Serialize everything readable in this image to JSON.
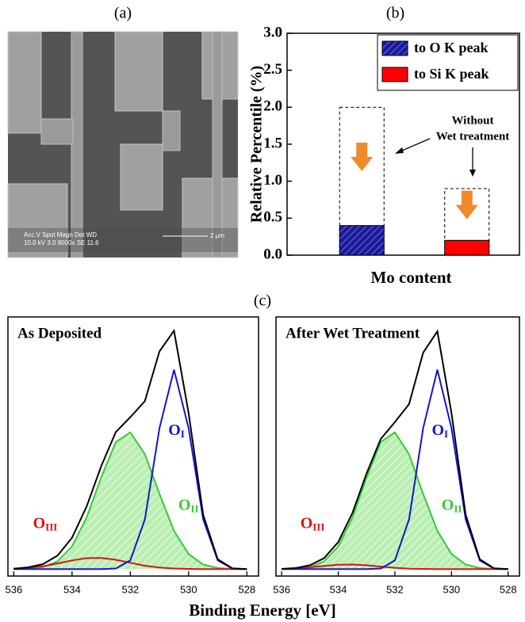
{
  "figure": {
    "labels": {
      "a": "(a)",
      "c": "(c)"
    },
    "sem_text": [
      "Acc.V  Spot Magn     Det  WD",
      "10.0 kV 3.0   8000x    SE   11.6",
      "2 μm"
    ]
  },
  "chart_data": [
    {
      "type": "bar",
      "title": "(b)",
      "y_label": "Relative Percentile (%)",
      "x_label": "Mo content",
      "categories": [
        null,
        null
      ],
      "series": [
        {
          "name": "to O K peak",
          "color": "#1a1a9c",
          "hatch": true,
          "values": [
            0.4,
            null
          ]
        },
        {
          "name": "to Si K peak",
          "color": "#ff0000",
          "hatch": false,
          "values": [
            null,
            0.2
          ]
        }
      ],
      "dashed_values": [
        2.0,
        0.9
      ],
      "annotation": [
        "Without",
        "Wet treatment"
      ],
      "ylim": [
        0,
        3
      ],
      "yticks": [
        {
          "value": 0,
          "label": "0.0"
        },
        0.5,
        {
          "value": 1,
          "label": "1.0"
        },
        1.5,
        {
          "value": 2,
          "label": "2.0"
        },
        2.5,
        {
          "value": 3,
          "label": "3.0"
        }
      ],
      "legend": "upper-right"
    },
    {
      "type": "line",
      "title": "As Deposited",
      "x_label": "Binding Energy [eV]",
      "x": [
        536,
        535.5,
        535,
        534.5,
        534,
        533.5,
        533,
        532.5,
        532,
        531.5,
        531,
        530.5,
        530,
        529.5,
        529,
        528.5,
        528
      ],
      "series": [
        {
          "color": "#000000",
          "values": [
            0.002,
            0.008,
            0.022,
            0.059,
            0.137,
            0.273,
            0.449,
            0.598,
            0.663,
            0.733,
            0.95,
            1.04,
            0.682,
            0.237,
            0.043,
            0.004,
            0
          ]
        },
        {
          "name": "O",
          "name_sub": "I",
          "color": "#1515d0",
          "values": [
            0,
            0,
            0,
            0,
            0,
            0,
            0,
            0.003,
            0.038,
            0.217,
            0.615,
            0.87,
            0.615,
            0.217,
            0.038,
            0.003,
            0
          ]
        },
        {
          "name": "O",
          "name_sub": "II",
          "color": "#33cc33",
          "fill": true,
          "values": [
            0,
            0.002,
            0.009,
            0.034,
            0.099,
            0.225,
            0.4,
            0.554,
            0.597,
            0.501,
            0.328,
            0.167,
            0.066,
            0.02,
            0.005,
            0.001,
            0
          ]
        },
        {
          "name": "O",
          "name_sub": "III",
          "color": "#e01010",
          "values": [
            0.002,
            0.006,
            0.013,
            0.025,
            0.038,
            0.048,
            0.049,
            0.041,
            0.028,
            0.015,
            0.007,
            0.003,
            0.001,
            0,
            0,
            0,
            0
          ]
        }
      ],
      "xlim": [
        536.2,
        527.6
      ],
      "xticks": [
        536,
        534,
        532,
        530,
        528
      ],
      "ylim": [
        -0.03,
        1.1
      ]
    },
    {
      "type": "line",
      "title": "After Wet Treatment",
      "x": [
        536,
        535.5,
        535,
        534.5,
        534,
        533.5,
        533,
        532.5,
        532,
        531.5,
        531,
        530.5,
        530,
        529.5,
        529,
        528.5,
        528
      ],
      "series": [
        {
          "color": "#000000",
          "values": [
            0.001,
            0.005,
            0.017,
            0.048,
            0.118,
            0.245,
            0.417,
            0.568,
            0.641,
            0.72,
            0.944,
            1.037,
            0.681,
            0.237,
            0.043,
            0.004,
            0
          ]
        },
        {
          "name": "O",
          "name_sub": "I",
          "color": "#1515d0",
          "values": [
            0,
            0,
            0,
            0,
            0,
            0,
            0,
            0.003,
            0.038,
            0.217,
            0.615,
            0.87,
            0.615,
            0.217,
            0.038,
            0.003,
            0
          ]
        },
        {
          "name": "O",
          "name_sub": "II",
          "color": "#33cc33",
          "fill": true,
          "values": [
            0,
            0.002,
            0.009,
            0.034,
            0.099,
            0.225,
            0.4,
            0.554,
            0.597,
            0.501,
            0.328,
            0.167,
            0.066,
            0.02,
            0.005,
            0.001,
            0
          ]
        },
        {
          "name": "O",
          "name_sub": "III",
          "color": "#e01010",
          "values": [
            0.001,
            0.003,
            0.008,
            0.014,
            0.019,
            0.02,
            0.017,
            0.011,
            0.006,
            0.002,
            0.001,
            0,
            0,
            0,
            0,
            0,
            0
          ]
        }
      ],
      "xlim": [
        536.2,
        527.6
      ],
      "xticks": [
        536,
        534,
        532,
        530,
        528
      ],
      "ylim": [
        -0.03,
        1.1
      ]
    }
  ]
}
